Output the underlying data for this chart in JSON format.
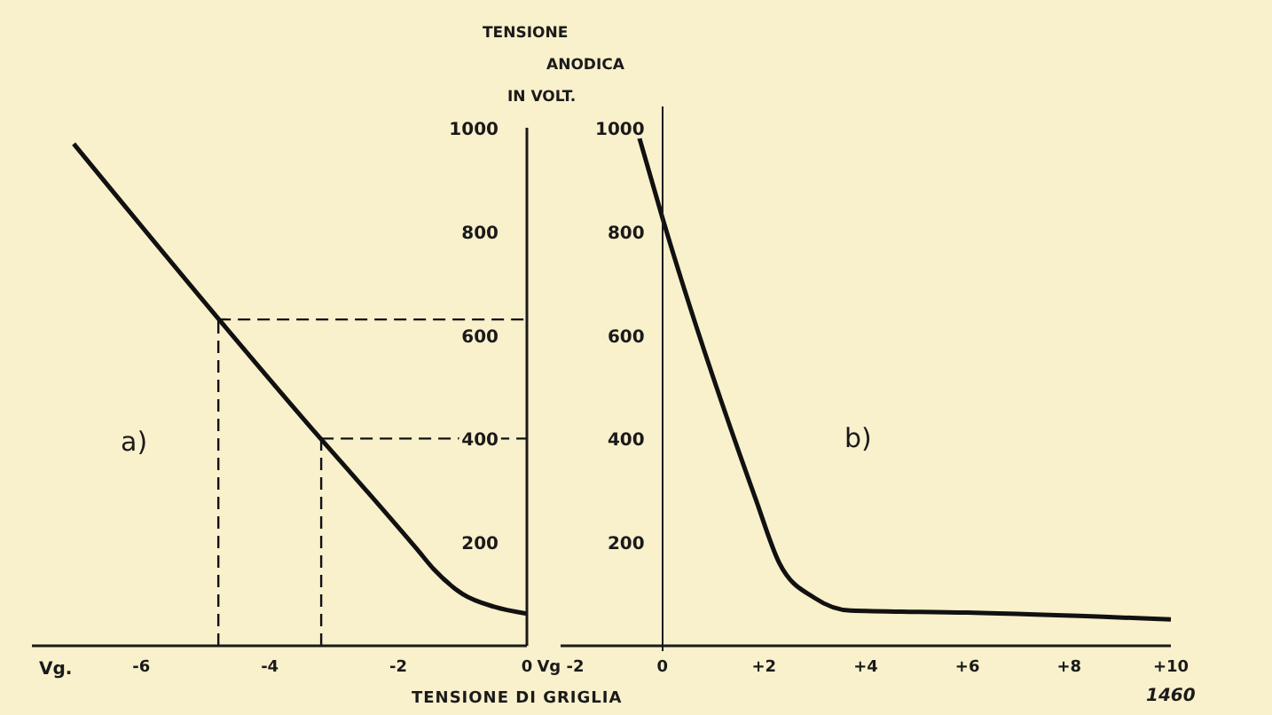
{
  "chart_data": [
    {
      "type": "line",
      "x": [
        -7.05,
        -4.79,
        -3.21,
        -2.5,
        -1.7,
        -1.45,
        -1.0,
        -0.5,
        0
      ],
      "series": [
        {
          "color": "#111111",
          "values": [
            969,
            630,
            400,
            300,
            185,
            148,
            100,
            75,
            62
          ]
        }
      ],
      "xlim": [
        -7.7,
        0
      ],
      "xticks": [
        -6,
        -4,
        -2,
        0
      ],
      "ylim": [
        0,
        1000
      ],
      "yticks": [
        200,
        400,
        600,
        800,
        1000
      ],
      "marker": "none",
      "line_style": "solid",
      "grid": false,
      "legend": false,
      "ref_lines": [
        {
          "axis": "y",
          "value": 630,
          "line_style": "dashed",
          "color": "#111111"
        },
        {
          "axis": "y",
          "value": 400,
          "line_style": "dashed",
          "color": "#111111"
        },
        {
          "axis": "x",
          "value": -4.8,
          "line_style": "dashed",
          "color": "#111111"
        },
        {
          "axis": "x",
          "value": -3.2,
          "line_style": "dashed",
          "color": "#111111"
        }
      ],
      "annotations": [
        "a)",
        "Vg."
      ]
    },
    {
      "type": "line",
      "x": [
        -0.45,
        0,
        1.83,
        2.3,
        3.0,
        3.7,
        6,
        10
      ],
      "series": [
        {
          "color": "#111111",
          "values": [
            980,
            827,
            285,
            160,
            92,
            68,
            64,
            51
          ]
        }
      ],
      "xlim": [
        -2,
        10
      ],
      "xticks": [
        {
          "value": -2,
          "label": "Vg -2"
        },
        0,
        {
          "value": 2,
          "label": "+2"
        },
        {
          "value": 4,
          "label": "+4"
        },
        {
          "value": 6,
          "label": "+6"
        },
        {
          "value": 8,
          "label": "+8"
        },
        {
          "value": 10,
          "label": "+10"
        }
      ],
      "ylim": [
        0,
        1000
      ],
      "yticks": [
        200,
        400,
        600,
        800,
        1000
      ],
      "marker": "none",
      "line_style": "solid",
      "grid": false,
      "legend": false,
      "ylabel": "TENSIONE\nANODICA\nIN VOLT.",
      "xlabel": "TENSIONE DI GRIGLIA",
      "annotations": [
        "b)",
        "1460"
      ]
    }
  ]
}
